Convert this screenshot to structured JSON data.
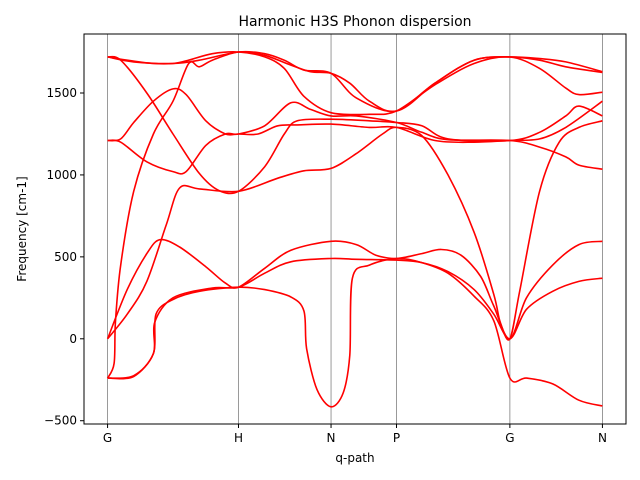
{
  "chart_data": {
    "type": "line",
    "title": "Harmonic H3S Phonon dispersion",
    "xlabel": "q-path",
    "ylabel": "Frequency [cm-1]",
    "x_ticks": [
      {
        "label": "G",
        "x": 0.0
      },
      {
        "label": "H",
        "x": 1.0
      },
      {
        "label": "N",
        "x": 1.707
      },
      {
        "label": "P",
        "x": 2.207
      },
      {
        "label": "G",
        "x": 3.073
      },
      {
        "label": "N",
        "x": 3.78
      }
    ],
    "y_ticks": [
      -500,
      0,
      500,
      1000,
      1500
    ],
    "xlim": [
      -0.18,
      3.96
    ],
    "ylim": [
      -520,
      1860
    ],
    "line_color": "#ff0000",
    "grid": "vertical lines at high-symmetry points",
    "series": [
      {
        "values": [
          [
            0.0,
            -240
          ],
          [
            0.2,
            -225
          ],
          [
            0.35,
            -90
          ],
          [
            0.37,
            150
          ],
          [
            0.5,
            240
          ],
          [
            0.7,
            290
          ],
          [
            1.0,
            315
          ],
          [
            1.2,
            300
          ],
          [
            1.4,
            255
          ],
          [
            1.5,
            170
          ],
          [
            1.52,
            -60
          ],
          [
            1.6,
            -310
          ],
          [
            1.707,
            -415
          ],
          [
            1.8,
            -330
          ],
          [
            1.85,
            -100
          ],
          [
            1.87,
            370
          ],
          [
            2.0,
            450
          ],
          [
            2.207,
            490
          ],
          [
            2.4,
            465
          ],
          [
            2.6,
            400
          ],
          [
            2.8,
            260
          ],
          [
            2.95,
            110
          ],
          [
            3.073,
            -240
          ],
          [
            3.2,
            -240
          ],
          [
            3.4,
            -275
          ],
          [
            3.6,
            -375
          ],
          [
            3.78,
            -410
          ]
        ]
      },
      {
        "values": [
          [
            0.0,
            -240
          ],
          [
            0.05,
            -150
          ],
          [
            0.06,
            100
          ],
          [
            0.1,
            450
          ],
          [
            0.2,
            900
          ],
          [
            0.35,
            1250
          ],
          [
            0.5,
            1450
          ],
          [
            0.62,
            1680
          ],
          [
            0.7,
            1660
          ],
          [
            0.8,
            1700
          ],
          [
            1.0,
            1750
          ],
          [
            1.2,
            1730
          ],
          [
            1.4,
            1670
          ],
          [
            1.55,
            1630
          ],
          [
            1.707,
            1620
          ],
          [
            1.85,
            1560
          ],
          [
            2.0,
            1450
          ],
          [
            2.207,
            1390
          ],
          [
            2.5,
            1560
          ],
          [
            2.8,
            1700
          ],
          [
            3.073,
            1720
          ],
          [
            3.3,
            1700
          ],
          [
            3.5,
            1660
          ],
          [
            3.78,
            1625
          ]
        ]
      },
      {
        "values": [
          [
            0.0,
            0
          ],
          [
            0.15,
            150
          ],
          [
            0.3,
            350
          ],
          [
            0.45,
            700
          ],
          [
            0.55,
            920
          ],
          [
            0.7,
            915
          ],
          [
            1.0,
            900
          ],
          [
            1.3,
            980
          ],
          [
            1.5,
            1025
          ],
          [
            1.707,
            1040
          ],
          [
            1.9,
            1130
          ],
          [
            2.1,
            1250
          ],
          [
            2.207,
            1290
          ],
          [
            2.4,
            1240
          ],
          [
            2.6,
            1000
          ],
          [
            2.8,
            650
          ],
          [
            2.95,
            270
          ],
          [
            3.0,
            100
          ],
          [
            3.073,
            0
          ],
          [
            3.15,
            300
          ],
          [
            3.3,
            900
          ],
          [
            3.45,
            1200
          ],
          [
            3.6,
            1290
          ],
          [
            3.78,
            1330
          ]
        ]
      },
      {
        "values": [
          [
            0.0,
            0
          ],
          [
            0.15,
            300
          ],
          [
            0.3,
            520
          ],
          [
            0.4,
            605
          ],
          [
            0.55,
            560
          ],
          [
            0.75,
            440
          ],
          [
            0.9,
            340
          ],
          [
            1.0,
            315
          ],
          [
            1.2,
            430
          ],
          [
            1.4,
            540
          ],
          [
            1.707,
            595
          ],
          [
            1.9,
            575
          ],
          [
            2.05,
            510
          ],
          [
            2.207,
            490
          ],
          [
            2.4,
            520
          ],
          [
            2.55,
            545
          ],
          [
            2.7,
            510
          ],
          [
            2.85,
            380
          ],
          [
            2.95,
            200
          ],
          [
            3.073,
            0
          ],
          [
            3.2,
            250
          ],
          [
            3.4,
            450
          ],
          [
            3.6,
            575
          ],
          [
            3.78,
            595
          ]
        ]
      },
      {
        "values": [
          [
            0.0,
            1720
          ],
          [
            0.15,
            1700
          ],
          [
            0.35,
            1680
          ],
          [
            0.5,
            1680
          ],
          [
            0.62,
            1700
          ],
          [
            0.8,
            1740
          ],
          [
            1.0,
            1750
          ],
          [
            1.2,
            1720
          ],
          [
            1.35,
            1650
          ],
          [
            1.5,
            1480
          ],
          [
            1.707,
            1380
          ],
          [
            2.0,
            1370
          ],
          [
            2.207,
            1390
          ],
          [
            2.5,
            1550
          ],
          [
            2.8,
            1680
          ],
          [
            3.073,
            1720
          ],
          [
            3.3,
            1650
          ],
          [
            3.5,
            1530
          ],
          [
            3.6,
            1490
          ],
          [
            3.78,
            1505
          ]
        ]
      },
      {
        "values": [
          [
            0.0,
            1720
          ],
          [
            0.1,
            1700
          ],
          [
            0.3,
            1500
          ],
          [
            0.5,
            1250
          ],
          [
            0.7,
            1010
          ],
          [
            0.85,
            905
          ],
          [
            1.0,
            900
          ],
          [
            1.2,
            1050
          ],
          [
            1.35,
            1250
          ],
          [
            1.45,
            1330
          ],
          [
            1.707,
            1340
          ],
          [
            2.0,
            1330
          ],
          [
            2.207,
            1320
          ],
          [
            2.4,
            1300
          ],
          [
            2.6,
            1220
          ],
          [
            3.073,
            1210
          ],
          [
            3.3,
            1260
          ],
          [
            3.5,
            1360
          ],
          [
            3.6,
            1420
          ],
          [
            3.78,
            1360
          ]
        ]
      },
      {
        "values": [
          [
            0.0,
            1210
          ],
          [
            0.1,
            1200
          ],
          [
            0.3,
            1080
          ],
          [
            0.5,
            1020
          ],
          [
            0.6,
            1020
          ],
          [
            0.75,
            1180
          ],
          [
            0.9,
            1250
          ],
          [
            1.0,
            1250
          ],
          [
            1.2,
            1300
          ],
          [
            1.4,
            1440
          ],
          [
            1.55,
            1400
          ],
          [
            1.707,
            1360
          ],
          [
            1.9,
            1360
          ],
          [
            2.207,
            1320
          ],
          [
            2.4,
            1260
          ],
          [
            2.6,
            1215
          ],
          [
            3.073,
            1210
          ],
          [
            3.3,
            1170
          ],
          [
            3.5,
            1110
          ],
          [
            3.6,
            1060
          ],
          [
            3.78,
            1035
          ]
        ]
      },
      {
        "values": [
          [
            0.0,
            1210
          ],
          [
            0.1,
            1220
          ],
          [
            0.2,
            1320
          ],
          [
            0.35,
            1450
          ],
          [
            0.5,
            1525
          ],
          [
            0.6,
            1490
          ],
          [
            0.75,
            1330
          ],
          [
            0.9,
            1250
          ],
          [
            1.0,
            1250
          ],
          [
            1.15,
            1250
          ],
          [
            1.3,
            1300
          ],
          [
            1.45,
            1305
          ],
          [
            1.707,
            1310
          ],
          [
            2.0,
            1290
          ],
          [
            2.207,
            1290
          ],
          [
            2.5,
            1210
          ],
          [
            2.8,
            1200
          ],
          [
            3.073,
            1210
          ],
          [
            3.3,
            1220
          ],
          [
            3.5,
            1290
          ],
          [
            3.78,
            1450
          ]
        ]
      },
      {
        "values": [
          [
            0.0,
            -240
          ],
          [
            0.2,
            -230
          ],
          [
            0.35,
            -90
          ],
          [
            0.36,
            100
          ],
          [
            0.5,
            250
          ],
          [
            0.8,
            310
          ],
          [
            1.0,
            315
          ],
          [
            1.2,
            400
          ],
          [
            1.4,
            470
          ],
          [
            1.707,
            490
          ],
          [
            1.9,
            485
          ],
          [
            2.207,
            480
          ],
          [
            2.4,
            465
          ],
          [
            2.6,
            410
          ],
          [
            2.8,
            300
          ],
          [
            2.95,
            150
          ],
          [
            3.073,
            0
          ],
          [
            3.2,
            180
          ],
          [
            3.4,
            290
          ],
          [
            3.6,
            350
          ],
          [
            3.78,
            370
          ]
        ]
      },
      {
        "values": [
          [
            0.0,
            1720
          ],
          [
            0.2,
            1690
          ],
          [
            0.5,
            1680
          ],
          [
            0.7,
            1700
          ],
          [
            1.0,
            1750
          ],
          [
            1.2,
            1740
          ],
          [
            1.35,
            1700
          ],
          [
            1.5,
            1640
          ],
          [
            1.707,
            1620
          ],
          [
            1.9,
            1470
          ],
          [
            2.207,
            1390
          ],
          [
            2.5,
            1560
          ],
          [
            2.8,
            1700
          ],
          [
            3.073,
            1720
          ],
          [
            3.3,
            1710
          ],
          [
            3.5,
            1690
          ],
          [
            3.78,
            1630
          ]
        ]
      }
    ]
  }
}
